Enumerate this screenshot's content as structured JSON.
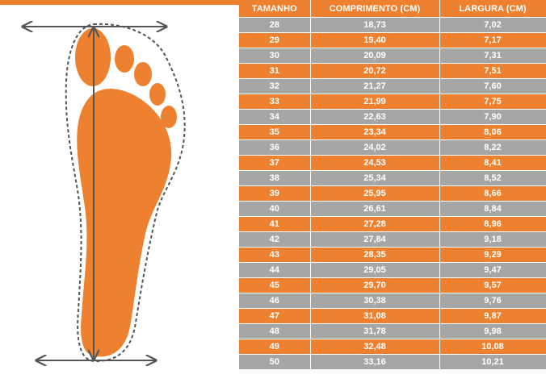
{
  "size_table": {
    "headers": [
      "TAMANHO",
      "COMPRIMENTO (CM)",
      "LARGURA (CM)"
    ],
    "rows": [
      [
        "28",
        "18,73",
        "7,02"
      ],
      [
        "29",
        "19,40",
        "7,17"
      ],
      [
        "30",
        "20,09",
        "7,31"
      ],
      [
        "31",
        "20,72",
        "7,51"
      ],
      [
        "32",
        "21,27",
        "7,60"
      ],
      [
        "33",
        "21,99",
        "7,75"
      ],
      [
        "34",
        "22,63",
        "7,90"
      ],
      [
        "35",
        "23,34",
        "8,06"
      ],
      [
        "36",
        "24,02",
        "8,22"
      ],
      [
        "37",
        "24,53",
        "8,41"
      ],
      [
        "38",
        "25,34",
        "8,52"
      ],
      [
        "39",
        "25,95",
        "8,66"
      ],
      [
        "40",
        "26,61",
        "8,84"
      ],
      [
        "41",
        "27,28",
        "8,96"
      ],
      [
        "42",
        "27,84",
        "9,18"
      ],
      [
        "43",
        "28,35",
        "9,29"
      ],
      [
        "44",
        "29,05",
        "9,47"
      ],
      [
        "45",
        "29,70",
        "9,57"
      ],
      [
        "46",
        "30,38",
        "9,76"
      ],
      [
        "47",
        "31,08",
        "9,87"
      ],
      [
        "48",
        "31,78",
        "9,98"
      ],
      [
        "49",
        "32,48",
        "10,08"
      ],
      [
        "50",
        "33,16",
        "10,21"
      ]
    ]
  },
  "colors": {
    "orange": "#ee8130",
    "gray": "#a6a6a6",
    "text": "#ffffff",
    "outline": "#555555"
  },
  "illustration": {
    "icon": "foot-measurement-icon"
  }
}
